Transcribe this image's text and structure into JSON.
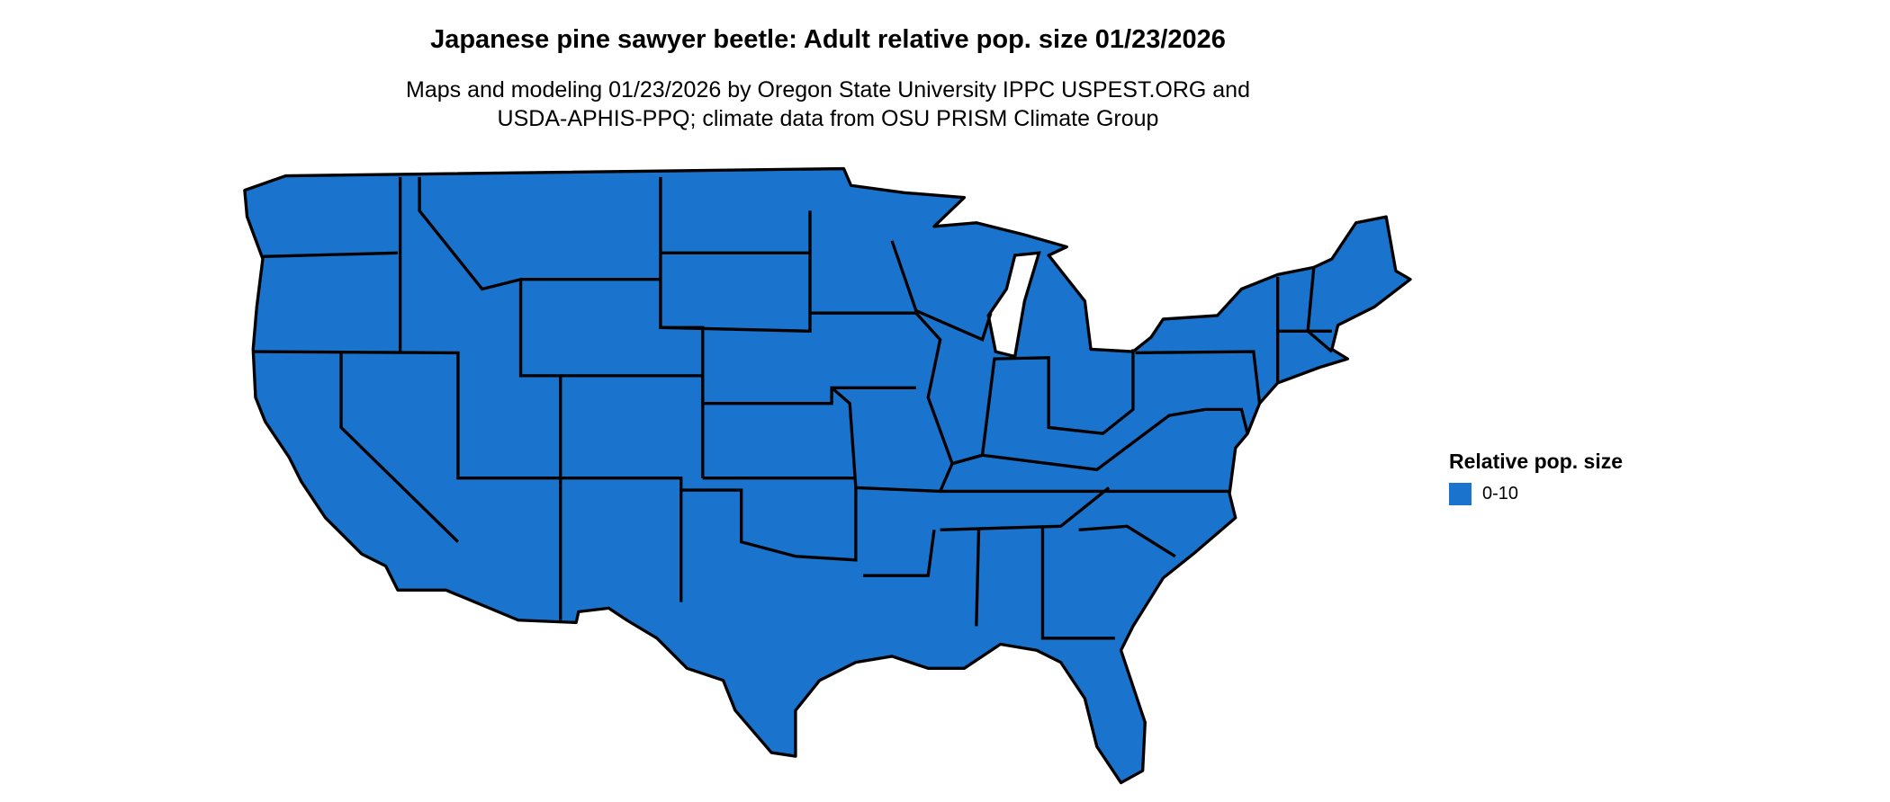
{
  "title": "Japanese pine sawyer beetle: Adult relative pop. size 01/23/2026",
  "subtitle_line1": "Maps and modeling 01/23/2026 by Oregon State University IPPC USPEST.ORG and",
  "subtitle_line2": "USDA-APHIS-PPQ; climate data from OSU PRISM Climate Group",
  "map": {
    "region": "Contiguous United States",
    "fill_color": "#1a73cc",
    "border_color": "#000000"
  },
  "legend": {
    "title": "Relative pop. size",
    "placement": "right",
    "items": [
      {
        "label": "0-10",
        "color": "#1a73cc"
      }
    ]
  }
}
